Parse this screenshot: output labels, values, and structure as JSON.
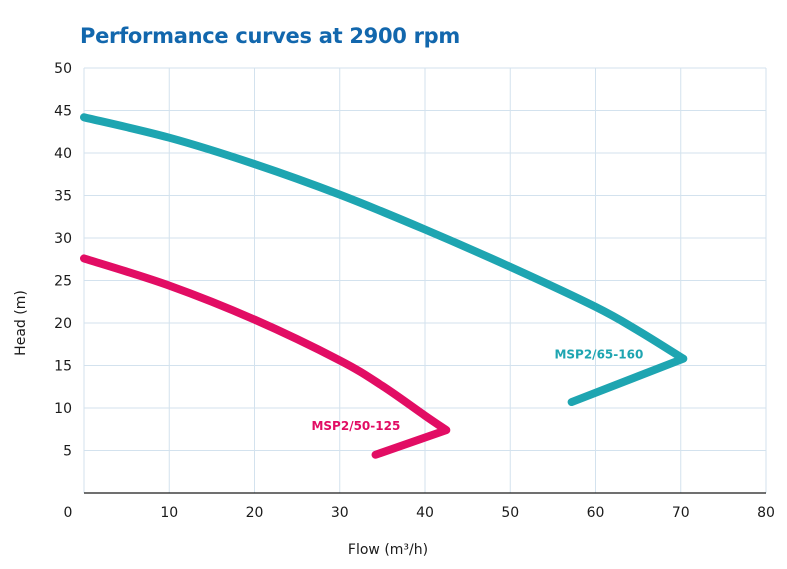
{
  "chart_data": {
    "type": "line",
    "title": "Performance curves at 2900 rpm",
    "xlabel": "Flow (m³/h)",
    "ylabel": "Head (m)",
    "xlim": [
      0,
      80
    ],
    "ylim": [
      0,
      50
    ],
    "xticks": [
      0,
      10,
      20,
      30,
      40,
      50,
      60,
      70,
      80
    ],
    "yticks": [
      5,
      10,
      15,
      20,
      25,
      30,
      35,
      40,
      45,
      50
    ],
    "grid": true,
    "series": [
      {
        "name": "MSP2/65-160",
        "color": "#1ea5b1",
        "points": [
          [
            0,
            44.2
          ],
          [
            10,
            41.8
          ],
          [
            20,
            38.7
          ],
          [
            30,
            35.1
          ],
          [
            40,
            31.0
          ],
          [
            50,
            26.6
          ],
          [
            60,
            21.9
          ],
          [
            65,
            19.1
          ],
          [
            70.3,
            15.8
          ],
          [
            57.2,
            10.7
          ]
        ]
      },
      {
        "name": "MSP2/50-125",
        "color": "#e20d64",
        "points": [
          [
            0,
            27.6
          ],
          [
            10,
            24.4
          ],
          [
            20,
            20.4
          ],
          [
            30,
            15.6
          ],
          [
            35,
            12.6
          ],
          [
            40,
            9.1
          ],
          [
            42.5,
            7.4
          ],
          [
            34.2,
            4.5
          ]
        ]
      }
    ]
  }
}
